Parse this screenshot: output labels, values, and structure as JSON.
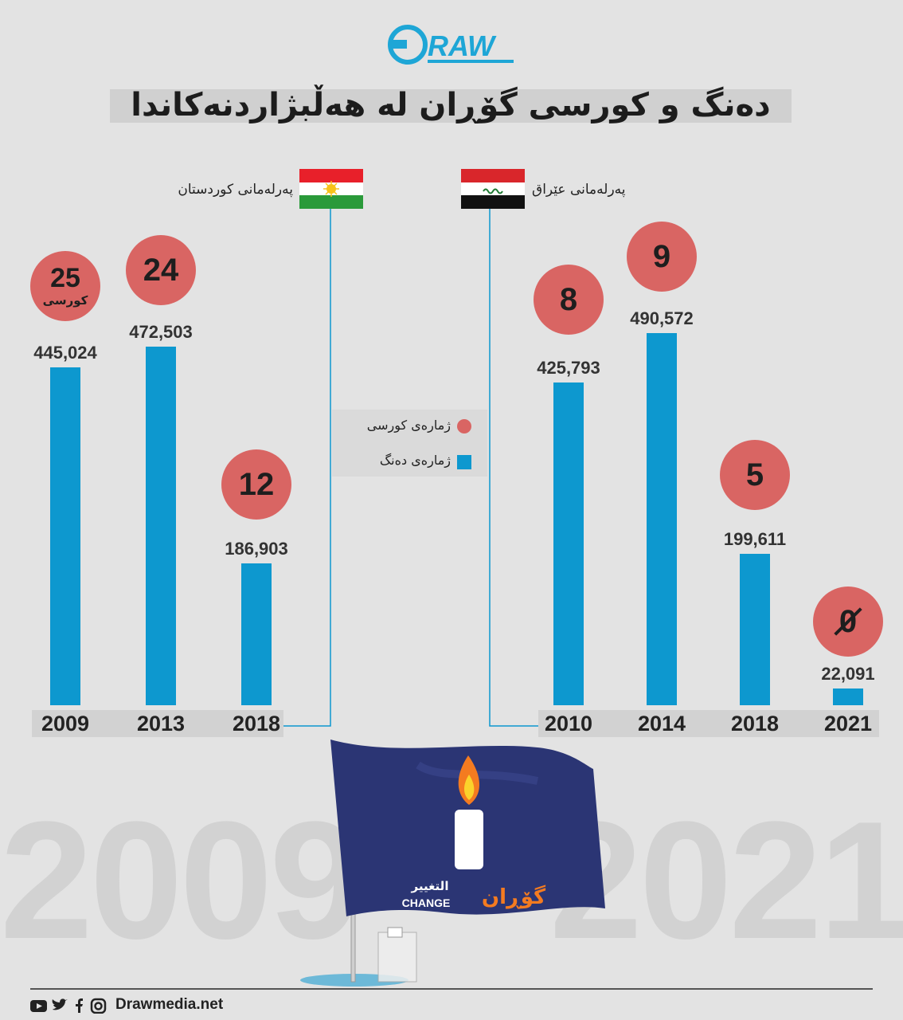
{
  "brand": {
    "name": "RAW",
    "website": "Drawmedia.net",
    "accent": "#1ea6d6"
  },
  "title": "دەنگ و کورسی گۆڕان لە هەڵبژاردنەکاندا",
  "legend": {
    "seats_label": "ژمارەی کورسی",
    "votes_label": "ژمارەی دەنگ",
    "seats_color": "#d96563",
    "votes_color": "#0d98cf"
  },
  "seat_unit_label": "کورسی",
  "footer": {
    "social_icons": [
      "youtube-icon",
      "twitter-icon",
      "facebook-icon",
      "instagram-icon"
    ]
  },
  "watermark": {
    "left": "2009",
    "right": "2021"
  },
  "party_flag": {
    "arabic": "التغيير",
    "english": "CHANGE",
    "kurdish": "گۆڕان",
    "color": "#2b3574"
  },
  "chart_data": [
    {
      "type": "bar",
      "title": "پەرلەمانی کوردستان",
      "categories": [
        "2009",
        "2013",
        "2018"
      ],
      "series": [
        {
          "name": "ژمارەی دەنگ",
          "values": [
            445024,
            472503,
            186903
          ]
        },
        {
          "name": "ژمارەی کورسی",
          "values": [
            25,
            24,
            12
          ]
        }
      ],
      "vote_labels": [
        "445,024",
        "472,503",
        "186,903"
      ],
      "seat_labels": [
        "25",
        "24",
        "12"
      ]
    },
    {
      "type": "bar",
      "title": "پەرلەمانی عێراق",
      "categories": [
        "2010",
        "2014",
        "2018",
        "2021"
      ],
      "series": [
        {
          "name": "ژمارەی دەنگ",
          "values": [
            425793,
            490572,
            199611,
            22091
          ]
        },
        {
          "name": "ژمارەی کورسی",
          "values": [
            8,
            9,
            5,
            0
          ]
        }
      ],
      "vote_labels": [
        "425,793",
        "490,572",
        "199,611",
        "22,091"
      ],
      "seat_labels": [
        "8",
        "9",
        "5",
        "0"
      ]
    }
  ]
}
